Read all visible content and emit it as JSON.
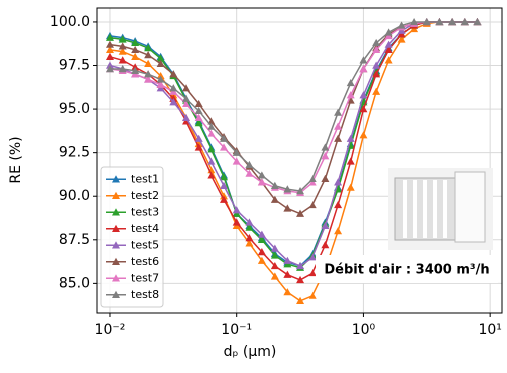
{
  "chart_data": {
    "type": "line",
    "xscale": "log",
    "grid": true,
    "legend_position": "lower left",
    "xlabel": "dₚ (µm)",
    "ylabel": "RE (%)",
    "annotation": "Débit d'air : 3400 m³/h",
    "xlim": [
      0.0079,
      12.4
    ],
    "ylim": [
      83.3,
      100.8
    ],
    "xticks": [
      {
        "value": 0.01,
        "label": "10⁻²"
      },
      {
        "value": 0.1,
        "label": "10⁻¹"
      },
      {
        "value": 1,
        "label": "10⁰"
      },
      {
        "value": 10,
        "label": "10¹"
      }
    ],
    "yticks": [
      {
        "value": 85,
        "label": "85.0"
      },
      87.5,
      {
        "value": 90,
        "label": "90.0"
      },
      92.5,
      {
        "value": 95,
        "label": "95.0"
      },
      97.5,
      {
        "value": 100,
        "label": "100.0"
      }
    ],
    "x": [
      0.01,
      0.0126,
      0.0158,
      0.02,
      0.0251,
      0.0316,
      0.0398,
      0.0501,
      0.0631,
      0.0794,
      0.1,
      0.126,
      0.158,
      0.2,
      0.251,
      0.316,
      0.398,
      0.501,
      0.631,
      0.794,
      1,
      1.26,
      1.58,
      2,
      2.51,
      3.16,
      3.98,
      5.01,
      6.31,
      7.94
    ],
    "series": [
      {
        "name": "test1",
        "color": "#1f77b4",
        "values": [
          99.2,
          99.1,
          98.9,
          98.6,
          98.0,
          97.0,
          95.6,
          94.3,
          92.8,
          91.2,
          89.0,
          88.3,
          87.6,
          86.7,
          86.2,
          86.0,
          86.7,
          88.5,
          90.5,
          93.0,
          95.5,
          97.2,
          98.5,
          99.3,
          99.8,
          100,
          100,
          100,
          100,
          100
        ]
      },
      {
        "name": "test2",
        "color": "#ff7f0e",
        "values": [
          98.4,
          98.3,
          98.0,
          97.6,
          96.9,
          95.8,
          94.5,
          93.0,
          91.5,
          90.0,
          88.3,
          87.3,
          86.3,
          85.4,
          84.5,
          84.0,
          84.3,
          85.8,
          88.0,
          90.5,
          93.5,
          96.0,
          97.8,
          99.0,
          99.6,
          99.9,
          100,
          100,
          100,
          100
        ]
      },
      {
        "name": "test3",
        "color": "#2ca02c",
        "values": [
          99.1,
          99.0,
          98.8,
          98.5,
          97.9,
          96.9,
          95.5,
          94.2,
          92.7,
          91.1,
          89.0,
          88.2,
          87.5,
          86.6,
          86.1,
          85.9,
          86.6,
          88.4,
          90.4,
          92.9,
          95.4,
          97.1,
          98.4,
          99.3,
          99.8,
          100,
          100,
          100,
          100,
          100
        ]
      },
      {
        "name": "test4",
        "color": "#d62728",
        "values": [
          98.0,
          97.8,
          97.4,
          97.0,
          96.4,
          95.6,
          94.3,
          92.8,
          91.2,
          89.8,
          88.5,
          87.6,
          86.8,
          86.0,
          85.5,
          85.2,
          85.6,
          87.2,
          89.5,
          92.0,
          95.0,
          97.0,
          98.4,
          99.3,
          99.8,
          100,
          100,
          100,
          100,
          100
        ]
      },
      {
        "name": "test5",
        "color": "#9467bd",
        "values": [
          97.5,
          97.3,
          97.0,
          96.7,
          96.2,
          95.4,
          94.5,
          93.3,
          92.0,
          90.6,
          89.2,
          88.5,
          87.8,
          87.0,
          86.3,
          86.0,
          86.5,
          88.3,
          90.8,
          93.3,
          95.8,
          97.5,
          98.7,
          99.5,
          99.9,
          100,
          100,
          100,
          100,
          100
        ]
      },
      {
        "name": "test6",
        "color": "#8c564b",
        "values": [
          98.7,
          98.6,
          98.4,
          98.1,
          97.6,
          97.0,
          96.2,
          95.3,
          94.3,
          93.4,
          92.6,
          91.7,
          90.8,
          89.8,
          89.3,
          89.0,
          89.5,
          91.0,
          93.3,
          95.5,
          97.3,
          98.5,
          99.3,
          99.7,
          99.9,
          100,
          100,
          100,
          100,
          100
        ]
      },
      {
        "name": "test7",
        "color": "#e377c2",
        "values": [
          97.3,
          97.2,
          97.0,
          96.7,
          96.4,
          96.0,
          95.3,
          94.5,
          93.6,
          92.8,
          92.0,
          91.3,
          90.8,
          90.5,
          90.3,
          90.2,
          90.8,
          92.3,
          94.0,
          95.8,
          97.3,
          98.4,
          99.2,
          99.7,
          99.9,
          100,
          100,
          100,
          100,
          100
        ]
      },
      {
        "name": "test8",
        "color": "#7f7f7f",
        "values": [
          97.3,
          97.3,
          97.2,
          97.0,
          96.7,
          96.2,
          95.6,
          94.9,
          94.0,
          93.3,
          92.5,
          91.8,
          91.2,
          90.6,
          90.4,
          90.3,
          91.0,
          92.8,
          94.8,
          96.5,
          97.8,
          98.8,
          99.4,
          99.8,
          100,
          100,
          100,
          100,
          100,
          100
        ]
      }
    ]
  }
}
